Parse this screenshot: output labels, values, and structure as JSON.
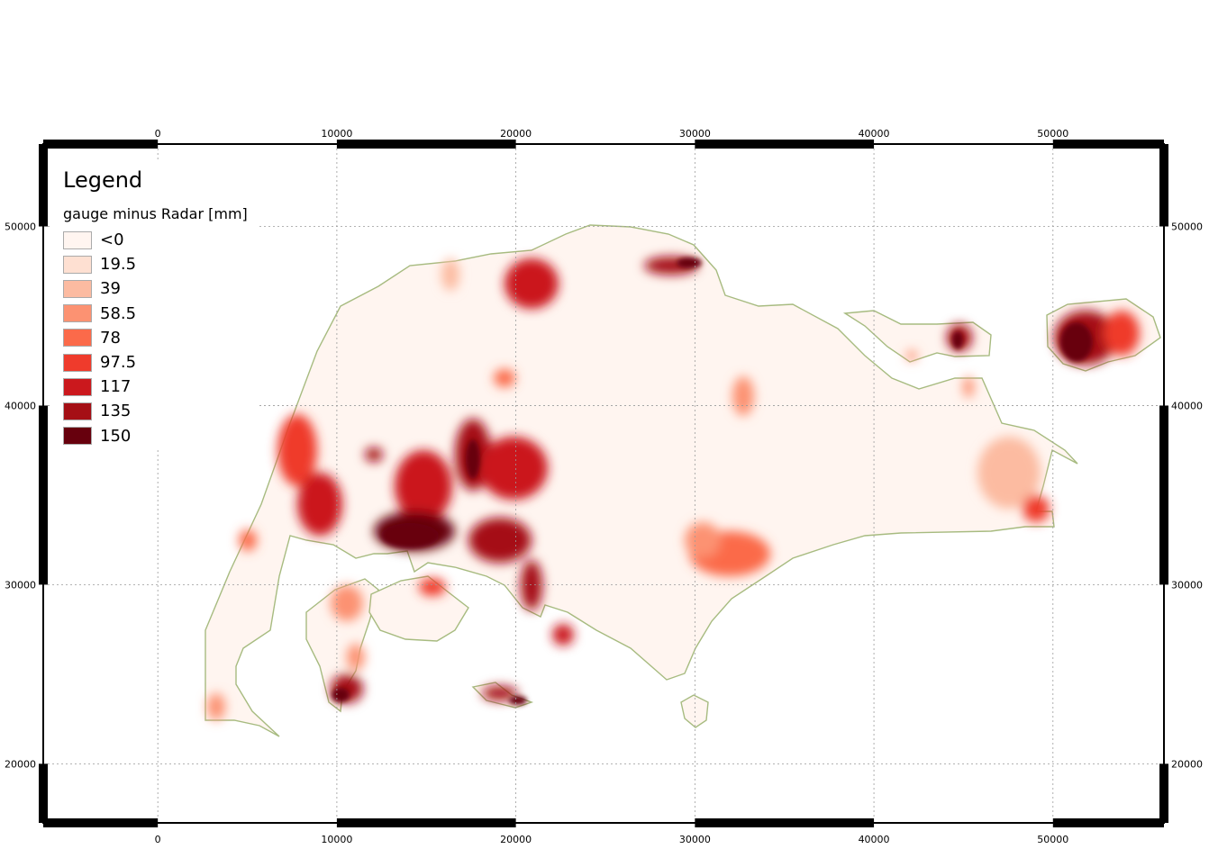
{
  "legend": {
    "title": "Legend",
    "layer_name": "gauge minus Radar [mm]",
    "classes": [
      {
        "label": "<0",
        "color": "#fff5f0"
      },
      {
        "label": "19.5",
        "color": "#fee0d2"
      },
      {
        "label": "39",
        "color": "#fcbba1"
      },
      {
        "label": "58.5",
        "color": "#fc9272"
      },
      {
        "label": "78",
        "color": "#fb6a4a"
      },
      {
        "label": "97.5",
        "color": "#ef3b2c"
      },
      {
        "label": "117",
        "color": "#cb181d"
      },
      {
        "label": "135",
        "color": "#a50f15"
      },
      {
        "label": "150",
        "color": "#67000d"
      }
    ]
  },
  "x_ticks": [
    "0",
    "10000",
    "20000",
    "30000",
    "40000",
    "50000"
  ],
  "y_ticks": [
    "50000",
    "40000",
    "30000",
    "20000"
  ],
  "x_tick_values": [
    0,
    10000,
    20000,
    30000,
    40000,
    50000
  ],
  "y_tick_values": [
    50000,
    40000,
    30000,
    20000
  ],
  "extent": {
    "x_min": -6400,
    "x_max": 56200,
    "y_min": 16700,
    "y_max": 54600
  },
  "colors": {
    "land": "#fff5f0",
    "coast": "#a7bb80",
    "grid": "#9a9a9a",
    "frame": "#000000"
  }
}
